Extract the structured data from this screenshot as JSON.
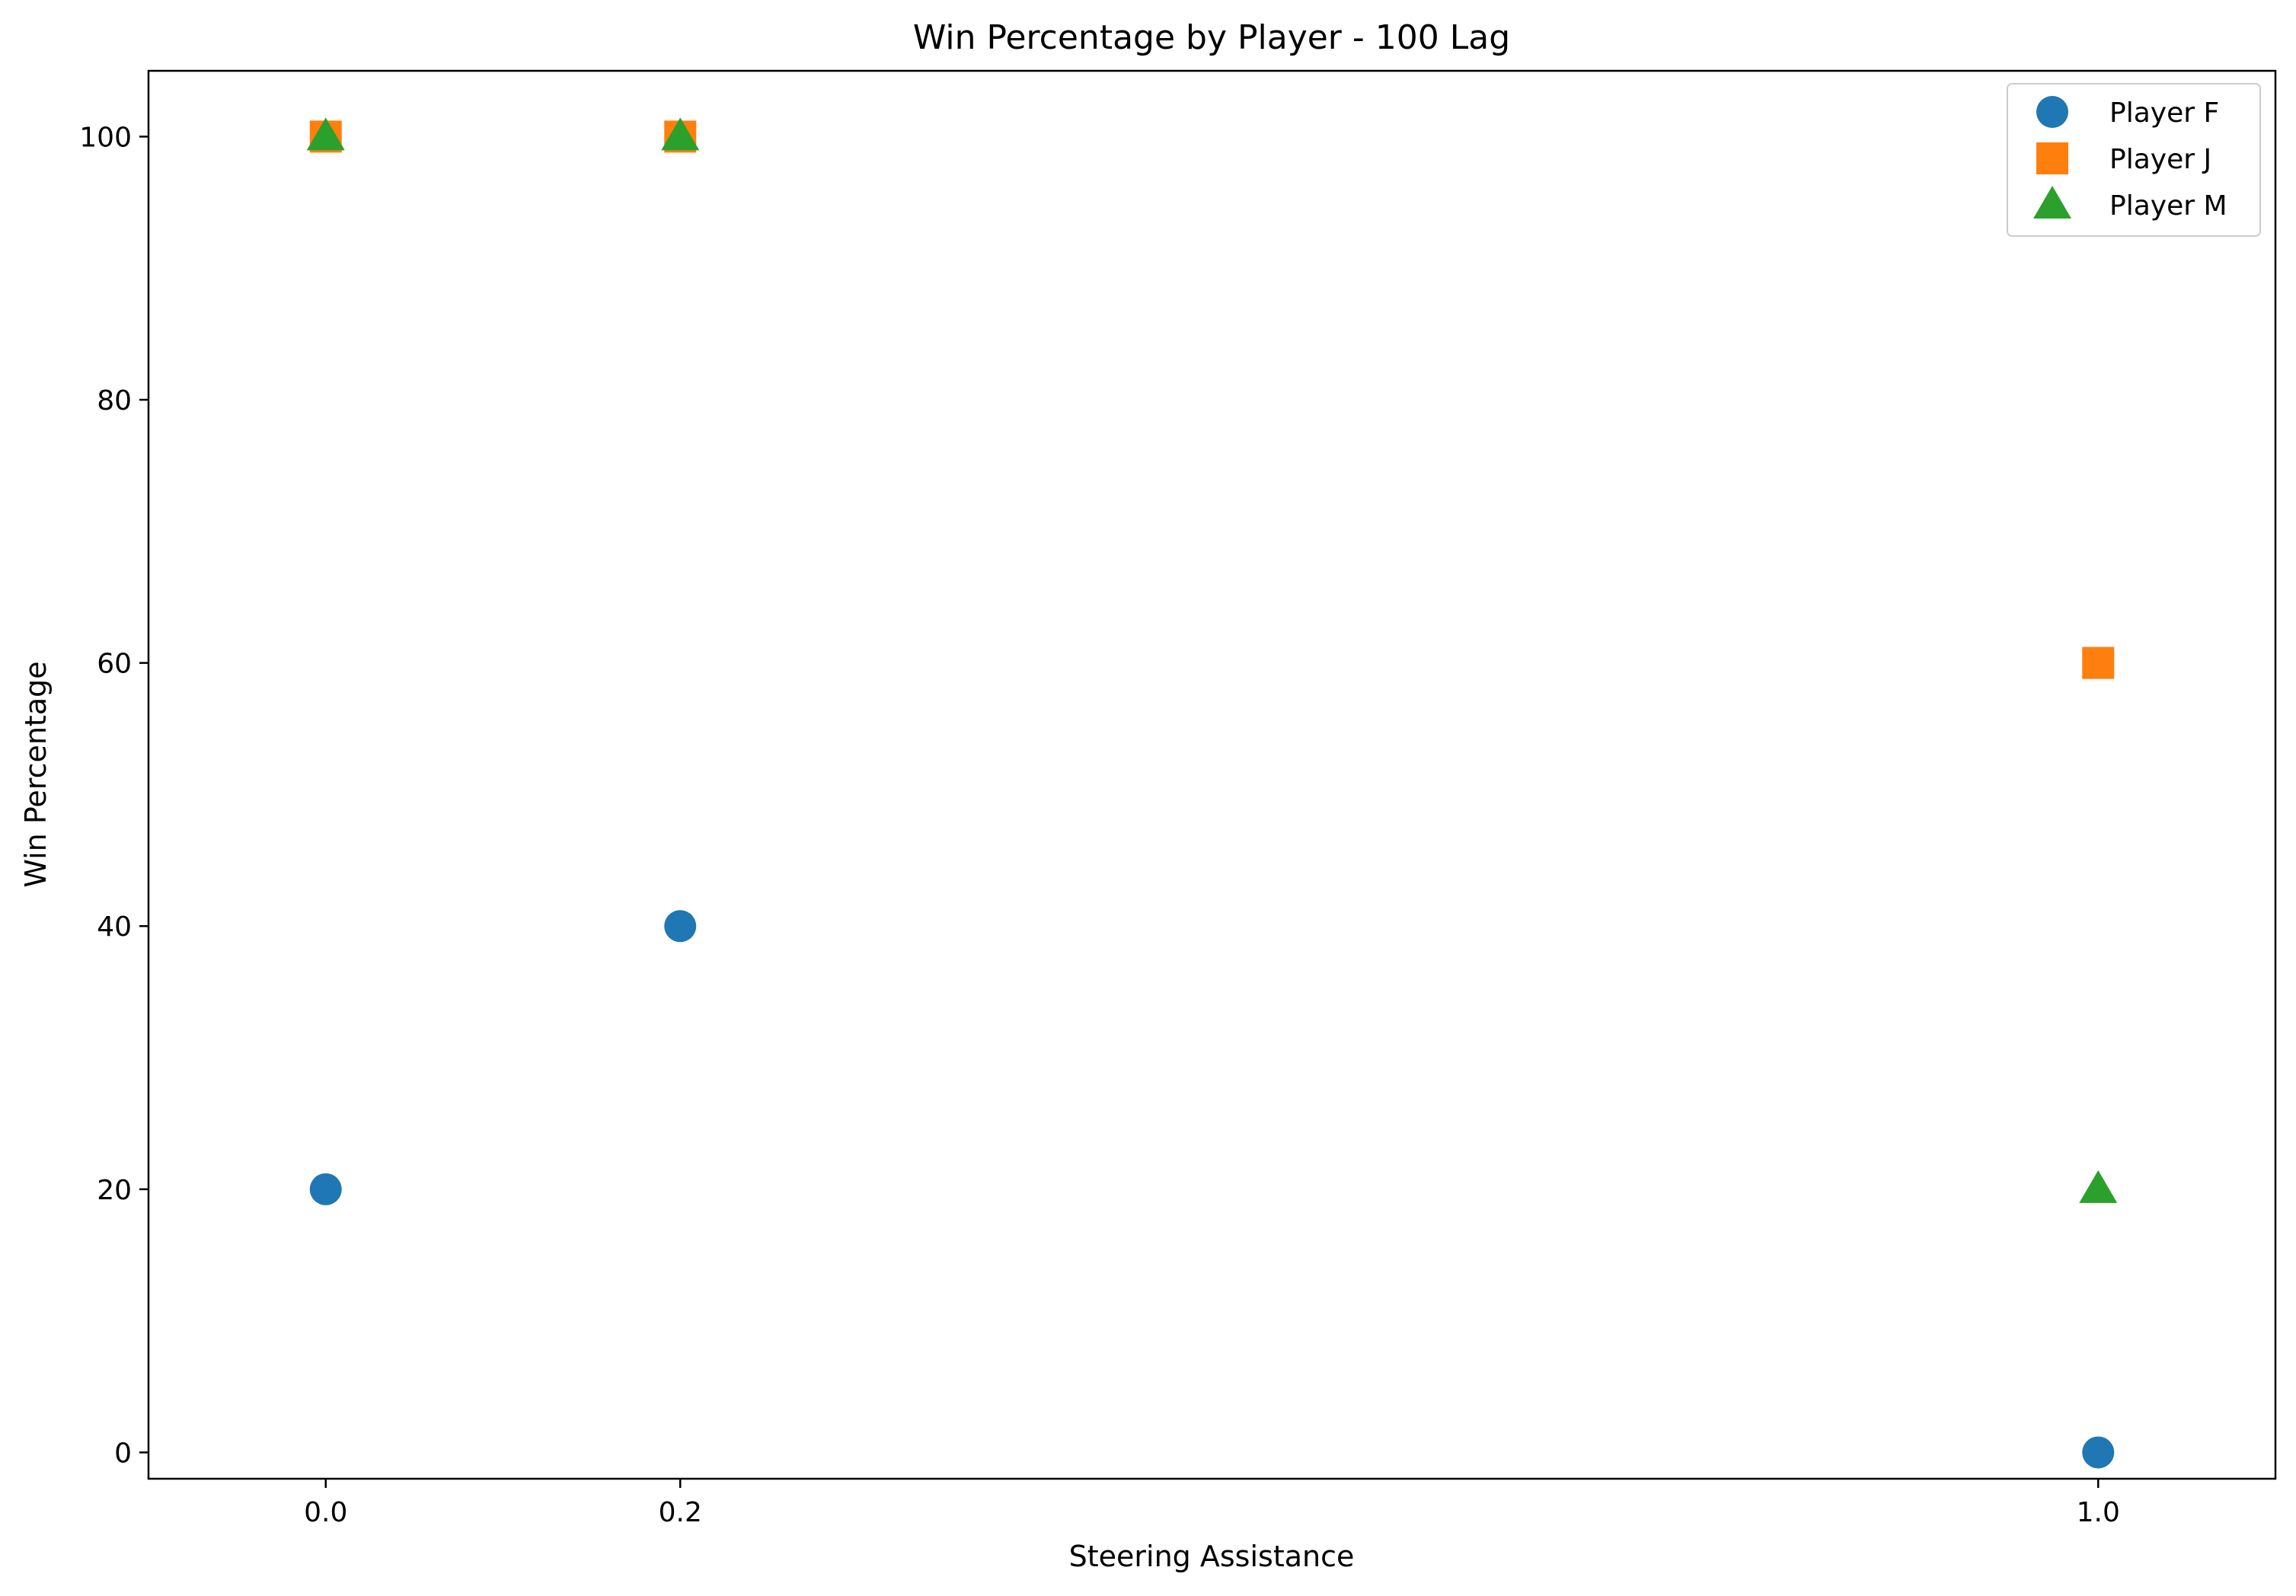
{
  "chart_data": {
    "type": "scatter",
    "title": "Win Percentage by Player - 100 Lag",
    "xlabel": "Steering Assistance",
    "ylabel": "Win Percentage",
    "xlim": [
      -0.1,
      1.1
    ],
    "ylim": [
      -2,
      105
    ],
    "x_ticks": [
      0.0,
      0.2,
      1.0
    ],
    "x_tick_labels": [
      "0.0",
      "0.2",
      "1.0"
    ],
    "y_ticks": [
      0,
      20,
      40,
      60,
      80,
      100
    ],
    "y_tick_labels": [
      "0",
      "20",
      "40",
      "60",
      "80",
      "100"
    ],
    "grid": false,
    "legend_position": "top-right",
    "series": [
      {
        "name": "Player F",
        "marker": "circle",
        "color": "#1f77b4",
        "x": [
          0.0,
          0.2,
          1.0
        ],
        "y": [
          20,
          40,
          0
        ]
      },
      {
        "name": "Player J",
        "marker": "square",
        "color": "#ff7f0e",
        "x": [
          0.0,
          0.2,
          1.0
        ],
        "y": [
          100,
          100,
          60
        ]
      },
      {
        "name": "Player M",
        "marker": "triangle",
        "color": "#2ca02c",
        "x": [
          0.0,
          0.2,
          1.0
        ],
        "y": [
          100,
          100,
          20
        ]
      }
    ]
  }
}
